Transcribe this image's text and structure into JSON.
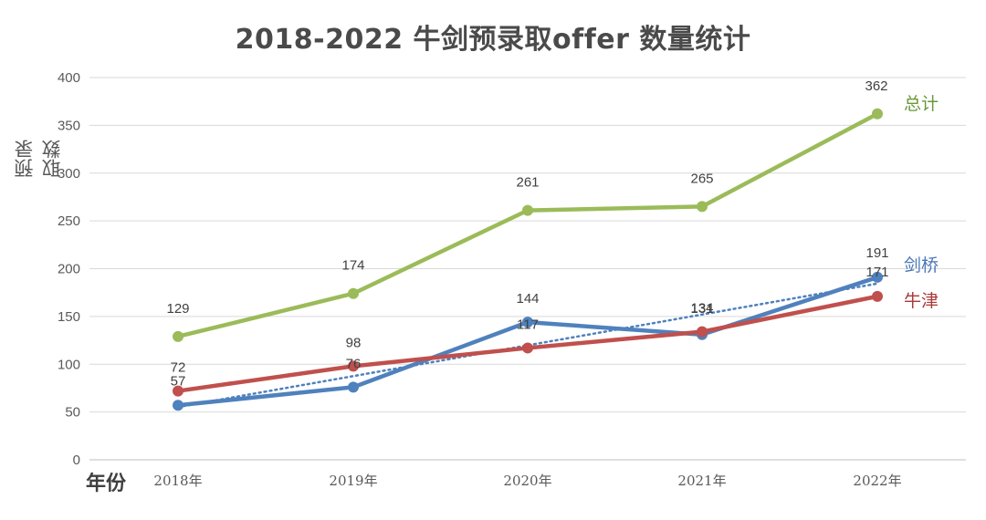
{
  "chart_data": {
    "type": "line",
    "title": "2018-2022 牛剑预录取offer 数量统计",
    "ylabel": "预录取数",
    "xlabel": "年份",
    "categories": [
      "2018年",
      "2019年",
      "2020年",
      "2021年",
      "2022年"
    ],
    "ylim": [
      0,
      400
    ],
    "yticks": [
      0,
      50,
      100,
      150,
      200,
      250,
      300,
      350,
      400
    ],
    "grid": true,
    "series": [
      {
        "name": "总计",
        "color": "#9bbb59",
        "values": [
          129,
          174,
          261,
          265,
          362
        ]
      },
      {
        "name": "剑桥",
        "color": "#4f81bd",
        "values": [
          57,
          76,
          144,
          131,
          191
        ]
      },
      {
        "name": "牛津",
        "color": "#c0504d",
        "values": [
          72,
          98,
          117,
          134,
          171
        ]
      }
    ],
    "trendline": {
      "series": "剑桥",
      "style": "dotted",
      "color": "#4f81bd"
    }
  }
}
